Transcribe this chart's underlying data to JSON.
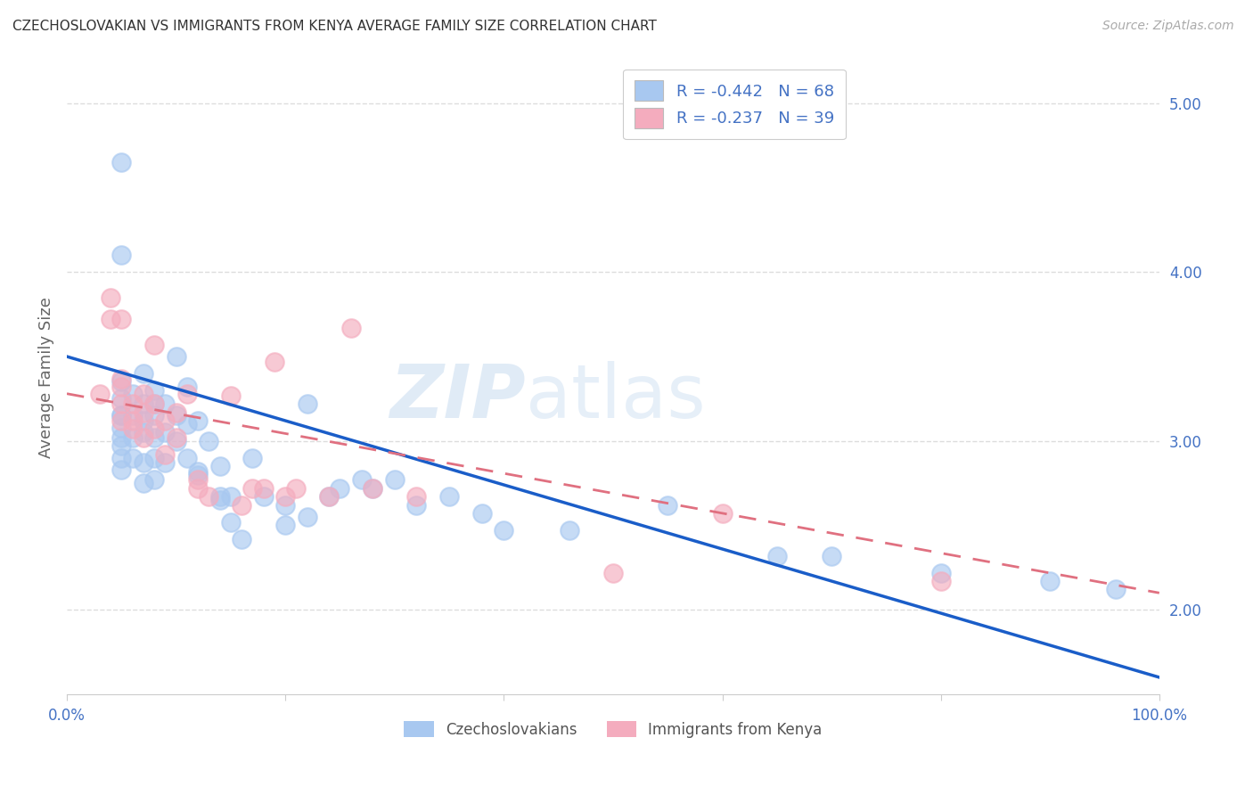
{
  "title": "CZECHOSLOVAKIAN VS IMMIGRANTS FROM KENYA AVERAGE FAMILY SIZE CORRELATION CHART",
  "source": "Source: ZipAtlas.com",
  "ylabel": "Average Family Size",
  "xlim": [
    0,
    100
  ],
  "ylim": [
    1.5,
    5.25
  ],
  "yticks": [
    2.0,
    3.0,
    4.0,
    5.0
  ],
  "xticks": [
    0,
    20,
    40,
    60,
    80,
    100
  ],
  "blue_color": "#A8C8F0",
  "pink_color": "#F4ACBE",
  "blue_line_color": "#1A5DC8",
  "pink_line_color": "#E07080",
  "legend_R_blue": "-0.442",
  "legend_N_blue": "68",
  "legend_R_pink": "-0.237",
  "legend_N_pink": "39",
  "legend_label_blue": "Czechoslovakians",
  "legend_label_pink": "Immigrants from Kenya",
  "watermark": "ZIPatlas",
  "tick_color": "#4472C4",
  "blue_line_x0": 0,
  "blue_line_y0": 3.5,
  "blue_line_x1": 100,
  "blue_line_y1": 1.6,
  "pink_line_x0": 0,
  "pink_line_y0": 3.28,
  "pink_line_x1": 100,
  "pink_line_y1": 2.1,
  "blue_scatter_x": [
    5,
    5,
    5,
    5,
    5,
    5,
    5,
    5,
    5,
    5,
    6,
    6,
    6,
    6,
    7,
    7,
    7,
    7,
    7,
    8,
    8,
    8,
    8,
    8,
    9,
    9,
    9,
    10,
    10,
    11,
    11,
    11,
    12,
    12,
    13,
    14,
    14,
    15,
    15,
    16,
    17,
    18,
    20,
    22,
    24,
    25,
    27,
    28,
    30,
    32,
    35,
    38,
    40,
    46,
    55,
    65,
    70,
    80,
    90,
    96,
    5,
    7,
    8,
    10,
    12,
    14,
    20,
    22
  ],
  "blue_scatter_y": [
    3.35,
    3.25,
    3.15,
    3.08,
    3.02,
    2.97,
    2.9,
    2.83,
    4.65,
    4.1,
    3.28,
    3.15,
    3.02,
    2.9,
    3.4,
    3.22,
    3.12,
    3.05,
    2.87,
    3.3,
    3.22,
    3.02,
    2.9,
    2.77,
    3.22,
    3.05,
    2.87,
    3.5,
    3.0,
    3.32,
    3.1,
    2.9,
    3.12,
    2.82,
    3.0,
    2.85,
    2.67,
    2.67,
    2.52,
    2.42,
    2.9,
    2.67,
    2.62,
    3.22,
    2.67,
    2.72,
    2.77,
    2.72,
    2.77,
    2.62,
    2.67,
    2.57,
    2.47,
    2.47,
    2.62,
    2.32,
    2.32,
    2.22,
    2.17,
    2.12,
    3.15,
    2.75,
    3.15,
    3.15,
    2.8,
    2.65,
    2.5,
    2.55
  ],
  "pink_scatter_x": [
    3,
    4,
    4,
    5,
    5,
    5,
    5,
    5,
    6,
    6,
    6,
    7,
    7,
    7,
    8,
    8,
    8,
    9,
    9,
    10,
    10,
    11,
    12,
    12,
    13,
    15,
    16,
    17,
    18,
    19,
    20,
    21,
    24,
    26,
    28,
    32,
    50,
    60,
    80
  ],
  "pink_scatter_y": [
    3.28,
    3.85,
    3.72,
    3.72,
    3.37,
    3.32,
    3.22,
    3.12,
    3.22,
    3.12,
    3.07,
    3.28,
    3.17,
    3.02,
    3.57,
    3.22,
    3.07,
    3.12,
    2.92,
    3.17,
    3.02,
    3.28,
    2.77,
    2.72,
    2.67,
    3.27,
    2.62,
    2.72,
    2.72,
    3.47,
    2.67,
    2.72,
    2.67,
    3.67,
    2.72,
    2.67,
    2.22,
    2.57,
    2.17
  ]
}
